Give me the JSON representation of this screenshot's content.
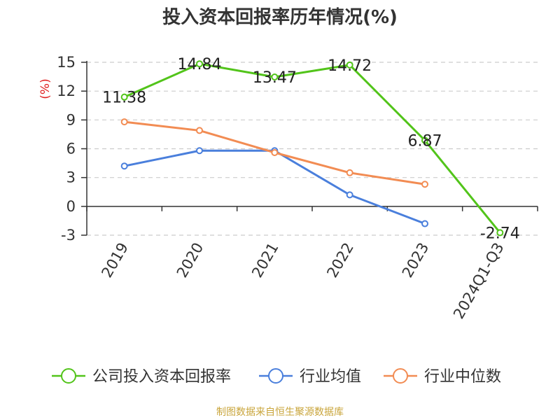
{
  "chart_data": {
    "type": "line",
    "title": "投入资本回报率历年情况(%)",
    "ylabel": "(%)",
    "xlabel": "",
    "categories": [
      "2019",
      "2020",
      "2021",
      "2022",
      "2023",
      "2024Q1-Q3"
    ],
    "yticks": [
      15,
      12,
      9,
      6,
      3,
      0,
      -3
    ],
    "ylim": [
      -3,
      15
    ],
    "grid": true,
    "legend_position": "bottom",
    "series": [
      {
        "name": "公司投入资本回报率",
        "color": "#52c41a",
        "values": [
          11.38,
          14.84,
          13.47,
          14.72,
          6.87,
          -2.74
        ],
        "labels": [
          "11.38",
          "14.84",
          "13.47",
          "14.72",
          "6.87",
          "-2.74"
        ]
      },
      {
        "name": "行业均值",
        "color": "#4a7fdc",
        "values": [
          4.2,
          5.8,
          5.8,
          1.2,
          -1.8,
          null
        ]
      },
      {
        "name": "行业中位数",
        "color": "#f28c53",
        "values": [
          8.8,
          7.9,
          5.6,
          3.5,
          2.3,
          null
        ]
      }
    ]
  },
  "source": "制图数据来自恒生聚源数据库"
}
